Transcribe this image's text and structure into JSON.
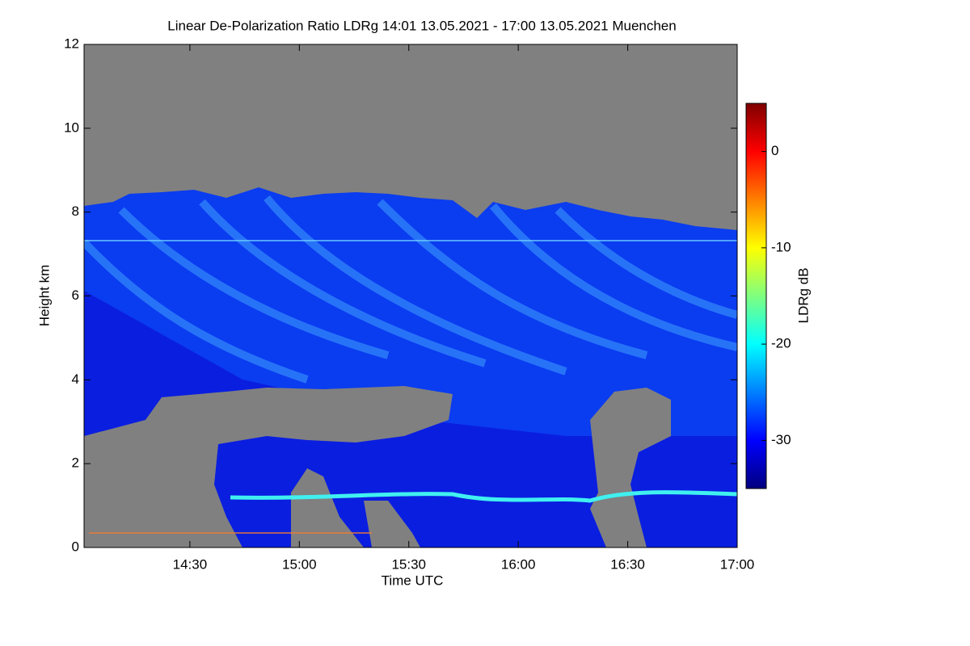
{
  "chart_data": {
    "type": "heatmap",
    "title": "Linear De-Polarization Ratio LDRg   14:01 13.05.2021 - 17:00 13.05.2021 Muenchen",
    "x_label": "Time UTC",
    "y_label": "Height km",
    "colorbar_label": "LDRg dB",
    "xlim": [
      841,
      1020
    ],
    "xticks": [
      {
        "value": 870,
        "label": "14:30"
      },
      {
        "value": 900,
        "label": "15:00"
      },
      {
        "value": 930,
        "label": "15:30"
      },
      {
        "value": 960,
        "label": "16:00"
      },
      {
        "value": 990,
        "label": "16:30"
      },
      {
        "value": 1020,
        "label": "17:00"
      }
    ],
    "ylim": [
      0,
      12
    ],
    "yticks": [
      0,
      2,
      4,
      6,
      8,
      10,
      12
    ],
    "clim": [
      -35,
      5
    ],
    "cticks": [
      -30,
      -20,
      -10,
      0
    ],
    "colormap": "jet"
  }
}
